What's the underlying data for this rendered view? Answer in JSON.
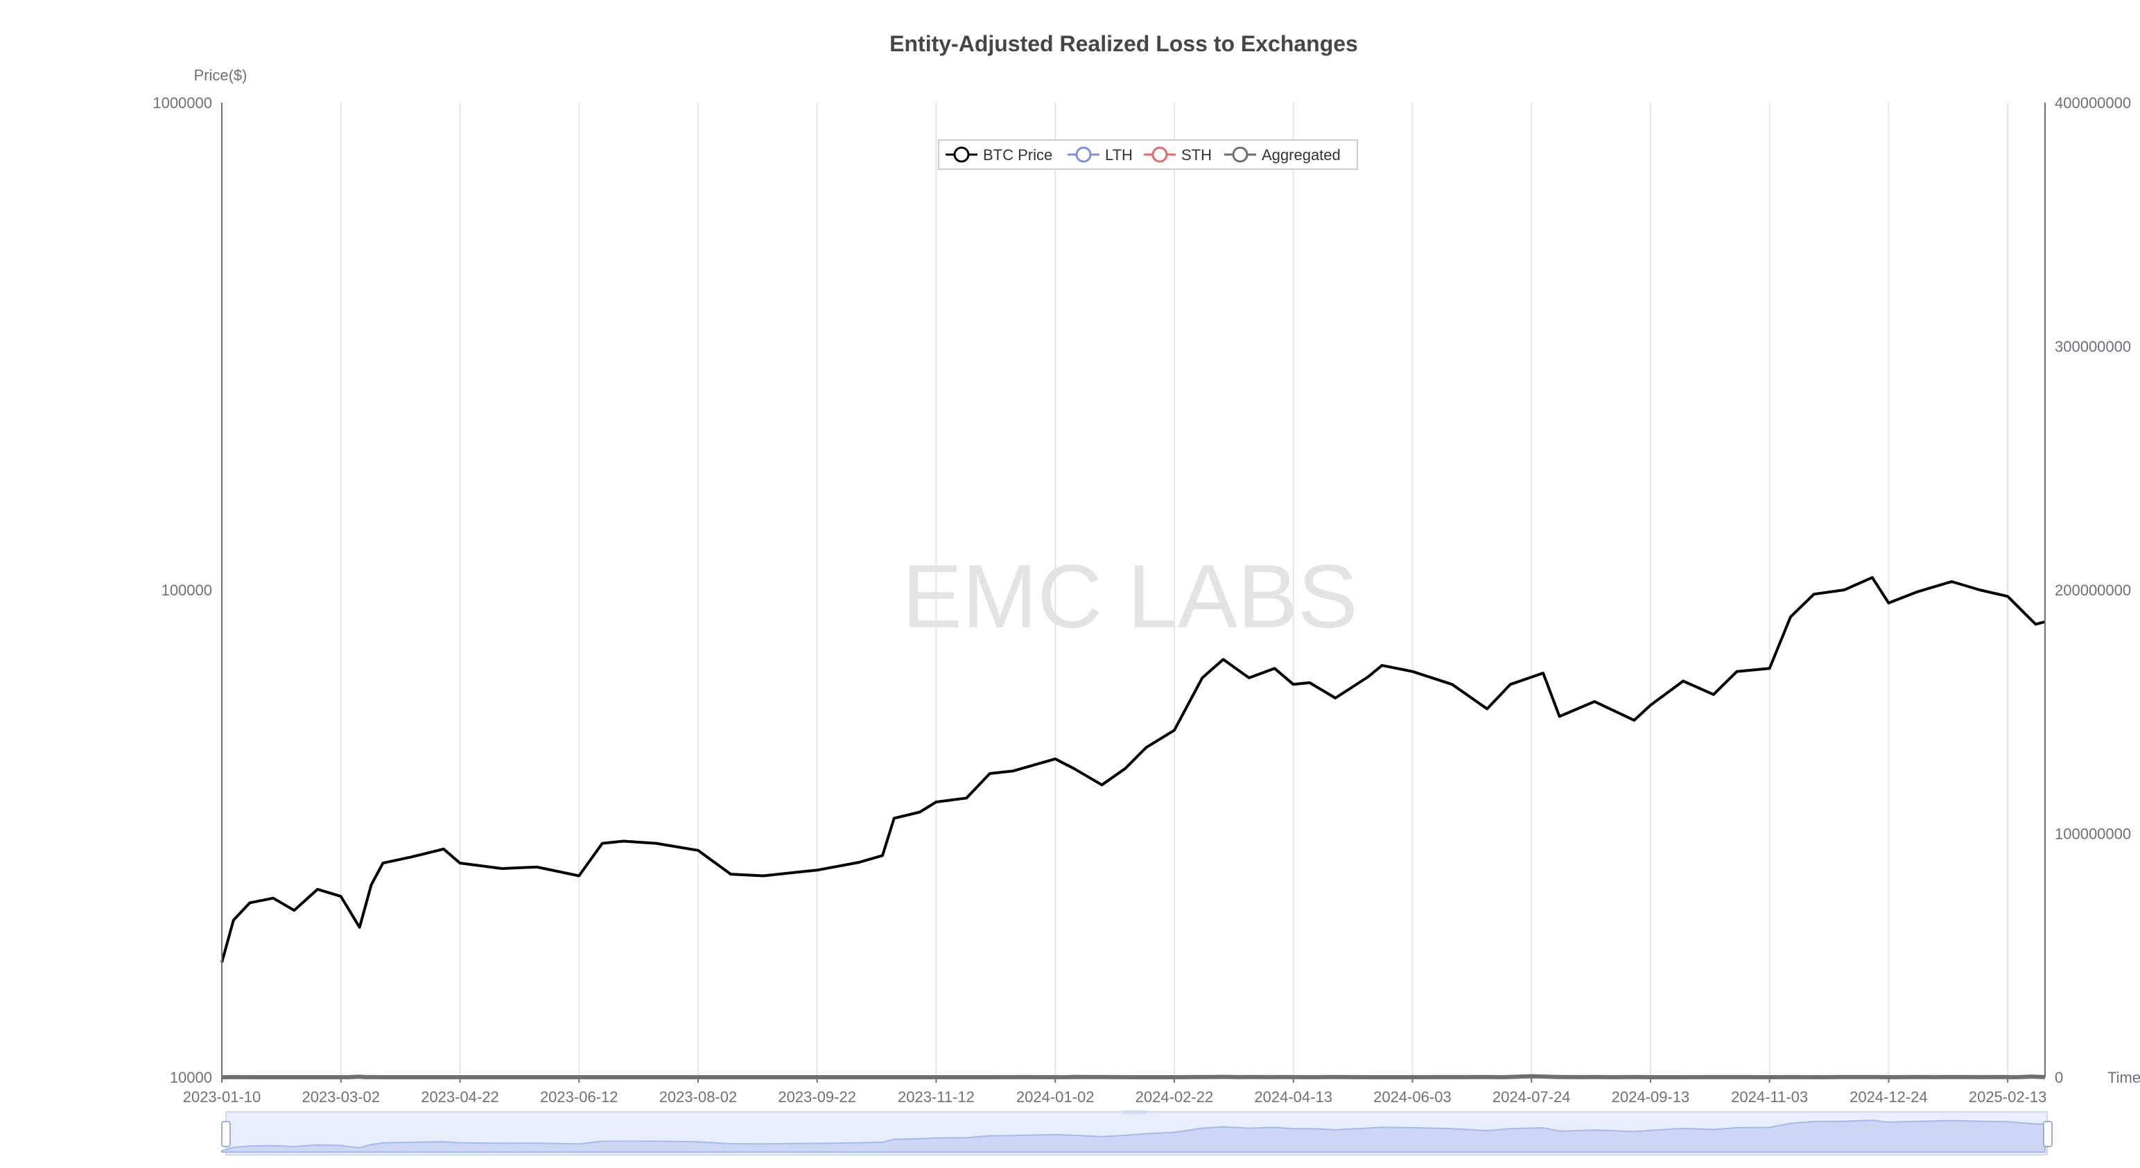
{
  "chart_data": {
    "type": "area",
    "title": "Entity-Adjusted Realized Loss to Exchanges",
    "watermark": "EMC LABS",
    "y_left": {
      "name": "Price($)",
      "scale": "log",
      "ticks": [
        10000,
        100000,
        1000000
      ],
      "tick_labels": [
        "10000",
        "100000",
        "1000000"
      ],
      "ylim": [
        10000,
        1000000
      ]
    },
    "y_right": {
      "scale": "linear",
      "ticks": [
        0,
        100000000,
        200000000,
        300000000,
        400000000
      ],
      "tick_labels": [
        "0",
        "100000000",
        "200000000",
        "300000000",
        "400000000"
      ],
      "ylim": [
        0,
        400000000
      ]
    },
    "x_axis": {
      "name": "Time",
      "range": [
        "2023-01-10",
        "2025-03-01"
      ],
      "tick_labels": [
        "2023-01-10",
        "2023-03-02",
        "2023-04-22",
        "2023-06-12",
        "2023-08-02",
        "2023-09-22",
        "2023-11-12",
        "2024-01-02",
        "2024-02-22",
        "2024-04-13",
        "2024-06-03",
        "2024-07-24",
        "2024-09-13",
        "2024-11-03",
        "2024-12-24",
        "2025-02-13"
      ]
    },
    "legend": {
      "placement": "top-center",
      "items": [
        {
          "name": "BTC Price",
          "color": "#000000"
        },
        {
          "name": "LTH",
          "color": "#7b8fe0"
        },
        {
          "name": "STH",
          "color": "#e06a6a"
        },
        {
          "name": "Aggregated",
          "color": "#6e6e6e"
        }
      ]
    },
    "series": [
      {
        "name": "BTC Price",
        "axis": "left",
        "x": [
          "2023-01-10",
          "2023-01-15",
          "2023-01-22",
          "2023-02-01",
          "2023-02-10",
          "2023-02-20",
          "2023-03-02",
          "2023-03-10",
          "2023-03-15",
          "2023-03-20",
          "2023-04-01",
          "2023-04-15",
          "2023-04-22",
          "2023-05-10",
          "2023-05-25",
          "2023-06-12",
          "2023-06-22",
          "2023-07-01",
          "2023-07-15",
          "2023-08-02",
          "2023-08-16",
          "2023-08-30",
          "2023-09-12",
          "2023-09-22",
          "2023-10-10",
          "2023-10-20",
          "2023-10-25",
          "2023-11-05",
          "2023-11-12",
          "2023-11-25",
          "2023-12-05",
          "2023-12-15",
          "2024-01-02",
          "2024-01-10",
          "2024-01-22",
          "2024-02-01",
          "2024-02-10",
          "2024-02-22",
          "2024-03-05",
          "2024-03-14",
          "2024-03-25",
          "2024-04-05",
          "2024-04-13",
          "2024-04-20",
          "2024-05-01",
          "2024-05-15",
          "2024-05-21",
          "2024-06-03",
          "2024-06-20",
          "2024-07-05",
          "2024-07-15",
          "2024-07-29",
          "2024-08-05",
          "2024-08-20",
          "2024-09-06",
          "2024-09-13",
          "2024-09-27",
          "2024-10-10",
          "2024-10-20",
          "2024-11-03",
          "2024-11-12",
          "2024-11-22",
          "2024-12-05",
          "2024-12-17",
          "2024-12-24",
          "2025-01-05",
          "2025-01-20",
          "2025-02-01",
          "2025-02-13",
          "2025-02-25",
          "2025-03-01"
        ],
        "values": [
          17200,
          21000,
          22800,
          23300,
          22000,
          24300,
          23500,
          20300,
          24800,
          27500,
          28300,
          29400,
          27500,
          26800,
          27000,
          25900,
          30200,
          30500,
          30200,
          29200,
          26100,
          25900,
          26300,
          26600,
          27600,
          28500,
          34000,
          35000,
          36700,
          37400,
          42000,
          42500,
          45000,
          43000,
          39800,
          43000,
          47500,
          51500,
          66000,
          72000,
          66000,
          69000,
          64000,
          64500,
          60000,
          66300,
          70000,
          68000,
          64000,
          57000,
          64000,
          67500,
          55000,
          59000,
          54000,
          58000,
          65000,
          61000,
          68000,
          69000,
          88000,
          98000,
          100000,
          106000,
          94000,
          99000,
          104000,
          100000,
          97000,
          85000,
          86000
        ]
      },
      {
        "name": "Aggregated",
        "axis": "right",
        "x": [
          "2023-01-10",
          "2023-01-15",
          "2023-01-25",
          "2023-02-05",
          "2023-02-15",
          "2023-02-25",
          "2023-03-05",
          "2023-03-10",
          "2023-03-12",
          "2023-03-15",
          "2023-03-20",
          "2023-04-05",
          "2023-04-22",
          "2023-05-10",
          "2023-05-30",
          "2023-06-12",
          "2023-06-20",
          "2023-07-10",
          "2023-08-02",
          "2023-08-20",
          "2023-09-05",
          "2023-09-22",
          "2023-10-15",
          "2023-11-12",
          "2023-12-05",
          "2023-12-20",
          "2024-01-02",
          "2024-01-08",
          "2024-01-10",
          "2024-01-14",
          "2024-01-17",
          "2024-01-20",
          "2024-02-05",
          "2024-02-22",
          "2024-02-29",
          "2024-03-05",
          "2024-03-10",
          "2024-03-13",
          "2024-03-20",
          "2024-03-27",
          "2024-04-03",
          "2024-04-08",
          "2024-04-13",
          "2024-04-21",
          "2024-04-30",
          "2024-05-15",
          "2024-06-03",
          "2024-06-15",
          "2024-06-25",
          "2024-07-05",
          "2024-07-12",
          "2024-07-24",
          "2024-08-05",
          "2024-08-08",
          "2024-08-12",
          "2024-08-20",
          "2024-08-28",
          "2024-09-06",
          "2024-09-13",
          "2024-09-25",
          "2024-10-10",
          "2024-10-25",
          "2024-11-03",
          "2024-11-12",
          "2024-11-25",
          "2024-12-05",
          "2024-12-16",
          "2024-12-18",
          "2024-12-25",
          "2025-01-05",
          "2025-01-13",
          "2025-01-20",
          "2025-02-03",
          "2025-02-10",
          "2025-02-17",
          "2025-02-23",
          "2025-02-25",
          "2025-03-01"
        ],
        "values": [
          7000,
          18000,
          6000,
          14000,
          5000,
          12000,
          6000,
          185000,
          22000,
          16000,
          4000,
          9000,
          5000,
          8000,
          5000,
          8000,
          12000,
          5000,
          4000,
          11000,
          6000,
          3000,
          5000,
          4000,
          3000,
          20000,
          5000,
          18000,
          120000,
          60000,
          50000,
          80000,
          10000,
          5000,
          18000,
          85000,
          45000,
          150000,
          20000,
          85000,
          40000,
          55000,
          40000,
          10000,
          98000,
          5000,
          12000,
          40000,
          25000,
          70000,
          10000,
          390000,
          85000,
          90000,
          25000,
          45000,
          8000,
          55000,
          12000,
          4000,
          28000,
          18000,
          5000,
          34000,
          6000,
          85000,
          87000,
          50000,
          6000,
          55000,
          25000,
          80000,
          15000,
          45000,
          8000,
          255000,
          180000,
          15000
        ]
      },
      {
        "name": "STH",
        "axis": "right",
        "x": [
          "2023-01-10",
          "2023-03-10",
          "2023-03-15",
          "2023-06-12",
          "2023-08-02",
          "2023-12-20",
          "2024-01-10",
          "2024-01-20",
          "2024-03-05",
          "2024-03-13",
          "2024-04-08",
          "2024-04-13",
          "2024-04-30",
          "2024-06-15",
          "2024-07-05",
          "2024-07-24",
          "2024-08-08",
          "2024-08-20",
          "2024-09-06",
          "2024-10-10",
          "2024-11-12",
          "2024-12-05",
          "2024-12-16",
          "2024-12-25",
          "2025-01-20",
          "2025-02-10",
          "2025-02-23",
          "2025-02-25",
          "2025-03-01"
        ],
        "values": [
          1000,
          8000,
          12000,
          2000,
          4000,
          8000,
          15000,
          20000,
          30000,
          80000,
          40000,
          45000,
          55000,
          15000,
          30000,
          100000,
          30000,
          20000,
          25000,
          12000,
          15000,
          40000,
          45000,
          20000,
          28000,
          15000,
          180000,
          150000,
          10000
        ]
      },
      {
        "name": "LTH",
        "axis": "right",
        "x": [
          "2023-01-10",
          "2023-02-01",
          "2023-03-02",
          "2023-03-10",
          "2023-04-22",
          "2023-06-12",
          "2023-08-02",
          "2023-09-22",
          "2023-11-12",
          "2024-01-02",
          "2024-01-10",
          "2024-02-22",
          "2024-04-13",
          "2024-06-03",
          "2024-07-24",
          "2024-09-13",
          "2024-11-03",
          "2024-12-24",
          "2025-02-13",
          "2025-03-01"
        ],
        "values": [
          6000,
          5000,
          4000,
          8000,
          3000,
          5000,
          2000,
          1000,
          1500,
          2000,
          6000,
          1000,
          2000,
          2000,
          18000,
          2000,
          1000,
          2000,
          2000,
          1000
        ]
      }
    ],
    "grid": true,
    "data_zoom": {
      "visible": true,
      "start": "2023-01-10",
      "end": "2025-03-01"
    }
  }
}
